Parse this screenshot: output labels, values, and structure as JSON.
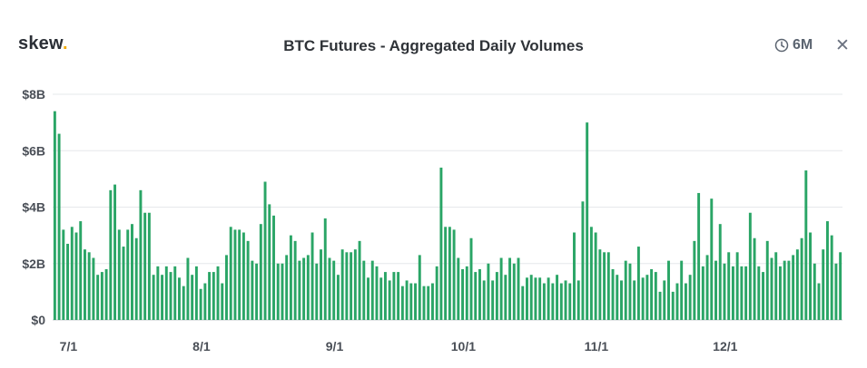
{
  "header": {
    "logo_text": "skew",
    "logo_dot": ".",
    "title": "BTC Futures - Aggregated Daily Volumes",
    "range_label": "6M",
    "range_icon": "clock-icon",
    "close_icon": "close-icon"
  },
  "colors": {
    "bar": "#2aa566",
    "grid": "#e6e8eb",
    "axis": "#c9cdd2",
    "logo_dot": "#f2a900"
  },
  "chart_data": {
    "type": "bar",
    "title": "BTC Futures - Aggregated Daily Volumes",
    "xlabel": "",
    "ylabel": "",
    "unit": "USD billions",
    "ylim": [
      0,
      8
    ],
    "y_ticks": [
      0,
      2,
      4,
      6,
      8
    ],
    "y_tick_labels": [
      "$0",
      "$2B",
      "$4B",
      "$6B",
      "$8B"
    ],
    "x_tick_labels": [
      "7/1",
      "8/1",
      "9/1",
      "10/1",
      "11/1",
      "12/1"
    ],
    "x_tick_indices": [
      0,
      31,
      62,
      92,
      123,
      153
    ],
    "grid": true,
    "legend": "none",
    "series": [
      {
        "values": [
          7.4,
          6.6,
          3.2,
          2.7,
          3.3,
          3.1,
          3.5,
          2.5,
          2.4,
          2.2,
          1.6,
          1.7,
          1.8,
          4.6,
          4.8,
          3.2,
          2.6,
          3.2,
          3.4,
          2.9,
          4.6,
          3.8,
          3.8,
          1.6,
          1.9,
          1.6,
          1.9,
          1.7,
          1.9,
          1.5,
          1.2,
          2.2,
          1.6,
          1.9,
          1.1,
          1.3,
          1.7,
          1.7,
          1.9,
          1.3,
          2.3,
          3.3,
          3.2,
          3.2,
          3.1,
          2.8,
          2.1,
          2.0,
          3.4,
          4.9,
          4.1,
          3.7,
          2.0,
          2.0,
          2.3,
          3.0,
          2.8,
          2.1,
          2.2,
          2.3,
          3.1,
          2.0,
          2.5,
          3.6,
          2.2,
          2.1,
          1.6,
          2.5,
          2.4,
          2.4,
          2.5,
          2.8,
          2.1,
          1.5,
          2.1,
          1.9,
          1.5,
          1.7,
          1.4,
          1.7,
          1.7,
          1.2,
          1.4,
          1.3,
          1.3,
          2.3,
          1.2,
          1.2,
          1.3,
          1.9,
          5.4,
          3.3,
          3.3,
          3.2,
          2.2,
          1.8,
          1.9,
          2.9,
          1.7,
          1.8,
          1.4,
          2.0,
          1.4,
          1.7,
          2.2,
          1.6,
          2.2,
          2.0,
          2.2,
          1.2,
          1.5,
          1.6,
          1.5,
          1.5,
          1.3,
          1.5,
          1.3,
          1.6,
          1.3,
          1.4,
          1.3,
          3.1,
          1.4,
          4.2,
          7.0,
          3.3,
          3.1,
          2.5,
          2.4,
          2.4,
          1.8,
          1.6,
          1.4,
          2.1,
          2.0,
          1.4,
          2.6,
          1.5,
          1.6,
          1.8,
          1.7,
          1.0,
          1.4,
          2.1,
          1.0,
          1.3,
          2.1,
          1.3,
          1.6,
          2.8,
          4.5,
          1.9,
          2.3,
          4.3,
          2.1,
          3.4,
          2.0,
          2.4,
          1.9,
          2.4,
          1.9,
          1.9,
          3.8,
          2.9,
          1.9,
          1.7,
          2.8,
          2.2,
          2.4,
          1.9,
          2.1,
          2.1,
          2.3,
          2.5,
          2.9,
          5.3,
          3.1,
          2.0,
          1.3,
          2.5,
          3.5,
          3.0,
          2.0,
          2.4
        ]
      }
    ]
  }
}
